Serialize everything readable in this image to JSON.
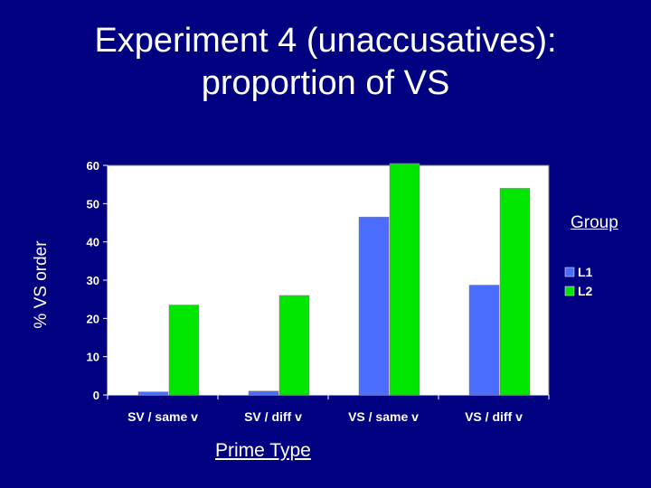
{
  "title_lines": [
    "Experiment 4 (unaccusatives):",
    "proportion of VS"
  ],
  "chart_data": {
    "type": "bar",
    "title": "Experiment 4 (unaccusatives): proportion of VS",
    "xlabel": "Prime Type",
    "ylabel": "% VS order",
    "ylim": [
      0,
      60
    ],
    "yticks": [
      0,
      10,
      20,
      30,
      40,
      50,
      60
    ],
    "categories": [
      "SV / same v",
      "SV / diff v",
      "VS / same v",
      "VS / diff v"
    ],
    "legend_title": "Group",
    "legend_position": "right",
    "grid": false,
    "series": [
      {
        "name": "L1",
        "color": "#4a6cff",
        "values": [
          0.8,
          1.0,
          46.5,
          28.7
        ]
      },
      {
        "name": "L2",
        "color": "#00e600",
        "values": [
          23.5,
          26.0,
          60.5,
          54.0
        ]
      }
    ]
  },
  "colors": {
    "background": "#000080",
    "text": "#ffffff",
    "plot_area": "#ffffff"
  }
}
